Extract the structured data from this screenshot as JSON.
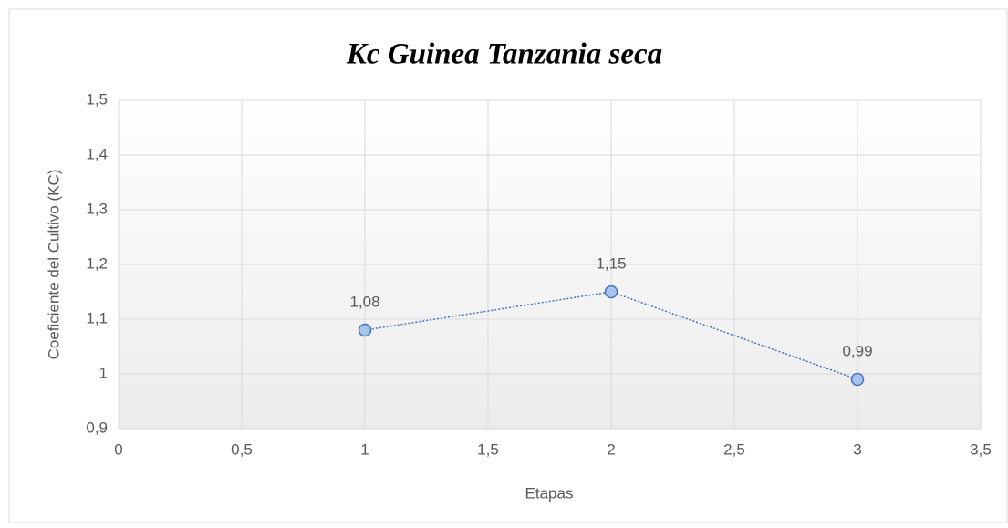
{
  "chart_data": {
    "type": "line",
    "title": "Kc  Guinea Tanzania seca",
    "x_label": "Etapas",
    "y_label": "Coeficiente del Cultivo (KC)",
    "x": [
      1,
      2,
      3
    ],
    "series": [
      {
        "name": "Kc",
        "color": "#4472c4",
        "values": [
          1.08,
          1.15,
          0.99
        ],
        "value_labels": [
          "1,08",
          "1,15",
          "0,99"
        ]
      }
    ],
    "xlim": [
      0,
      3.5
    ],
    "xticks": [
      0,
      {
        "value": 0.5,
        "label": "0,5"
      },
      1,
      {
        "value": 1.5,
        "label": "1,5"
      },
      2,
      {
        "value": 2.5,
        "label": "2,5"
      },
      3,
      {
        "value": 3.5,
        "label": "3,5"
      }
    ],
    "ylim": [
      0.9,
      1.5
    ],
    "yticks": [
      {
        "value": 0.9,
        "label": "0,9"
      },
      1,
      {
        "value": 1.1,
        "label": "1,1"
      },
      {
        "value": 1.2,
        "label": "1,2"
      },
      {
        "value": 1.3,
        "label": "1,3"
      },
      {
        "value": 1.4,
        "label": "1,4"
      },
      {
        "value": 1.5,
        "label": "1,5"
      }
    ],
    "grid": true
  }
}
